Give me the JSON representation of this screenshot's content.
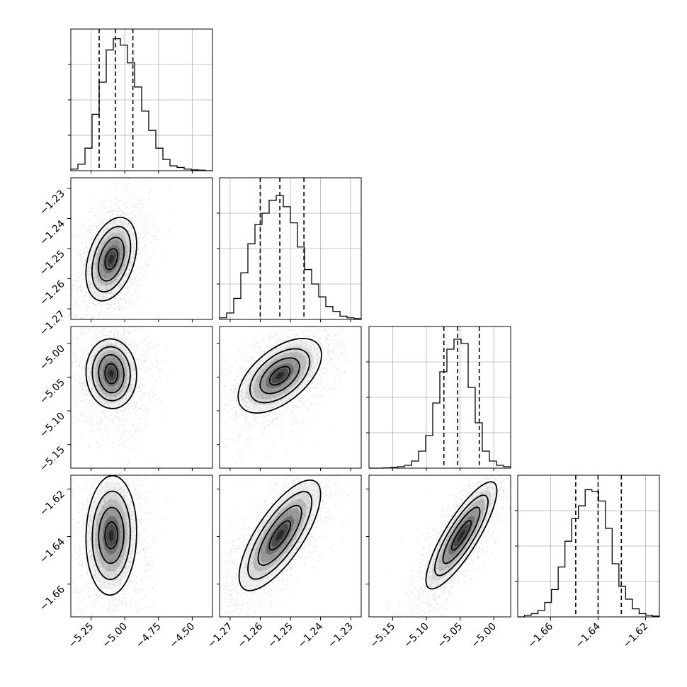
{
  "chart_data": {
    "type": "corner",
    "title": "",
    "grid": true,
    "params": [
      {
        "range": [
          -5.4,
          -4.35
        ],
        "ticks": [
          "−5.25",
          "−5.00",
          "−4.75",
          "−4.50"
        ],
        "tick_values": [
          -5.25,
          -5.0,
          -4.75,
          -4.5
        ],
        "quantiles": [
          -5.19,
          -5.07,
          -4.94
        ],
        "hist_ylim": [
          0,
          0.88
        ],
        "hist": [
          0.01,
          0.04,
          0.14,
          0.35,
          0.55,
          0.75,
          0.82,
          0.78,
          0.67,
          0.52,
          0.37,
          0.25,
          0.14,
          0.07,
          0.03,
          0.02,
          0.01,
          0.005,
          0.003,
          0
        ]
      },
      {
        "range": [
          -1.2735,
          -1.2265
        ],
        "ticks": [
          "−1.27",
          "−1.26",
          "−1.25",
          "−1.24",
          "−1.23"
        ],
        "tick_values": [
          -1.27,
          -1.26,
          -1.25,
          -1.24,
          -1.23
        ],
        "quantiles": [
          -1.26,
          -1.2535,
          -1.2455
        ],
        "hist_ylim": [
          0,
          0.88
        ],
        "hist": [
          0.01,
          0.04,
          0.13,
          0.29,
          0.47,
          0.59,
          0.66,
          0.74,
          0.77,
          0.7,
          0.6,
          0.45,
          0.31,
          0.22,
          0.14,
          0.08,
          0.05,
          0.02,
          0.01,
          0.005
        ]
      },
      {
        "range": [
          -5.185,
          -4.975
        ],
        "ticks": [
          "−5.15",
          "−5.10",
          "−5.05",
          "−5.00"
        ],
        "tick_values": [
          -5.15,
          -5.1,
          -5.05,
          -5.0
        ],
        "quantiles": [
          -5.074,
          -5.0535,
          -5.0215
        ],
        "hist_ylim": [
          0,
          1.0
        ],
        "hist": [
          0,
          0,
          0.002,
          0.005,
          0.01,
          0.02,
          0.05,
          0.12,
          0.23,
          0.46,
          0.68,
          0.84,
          0.91,
          0.88,
          0.57,
          0.32,
          0.12,
          0.05,
          0.02,
          0.01
        ]
      },
      {
        "range": [
          -1.6738,
          -1.6142
        ],
        "ticks": [
          "−1.66",
          "−1.64",
          "−1.62"
        ],
        "tick_values": [
          -1.66,
          -1.64,
          -1.62
        ],
        "quantiles": [
          -1.6494,
          -1.64,
          -1.6302
        ],
        "hist_ylim": [
          0,
          0.88
        ],
        "hist": [
          0,
          0.01,
          0.02,
          0.04,
          0.09,
          0.17,
          0.31,
          0.47,
          0.61,
          0.69,
          0.79,
          0.78,
          0.72,
          0.55,
          0.33,
          0.19,
          0.11,
          0.05,
          0.02,
          0.01,
          0.005
        ]
      }
    ],
    "pairs": [
      {
        "row": 1,
        "col": 0,
        "mean": [
          -5.1,
          -1.2535
        ],
        "sd": [
          0.075,
          0.0055
        ],
        "corr": 0.35
      },
      {
        "row": 2,
        "col": 0,
        "mean": [
          -5.1,
          -5.045
        ],
        "sd": [
          0.075,
          0.022
        ],
        "corr": -0.05
      },
      {
        "row": 2,
        "col": 1,
        "mean": [
          -1.2535,
          -5.048
        ],
        "sd": [
          0.0055,
          0.022
        ],
        "corr": 0.55
      },
      {
        "row": 3,
        "col": 0,
        "mean": [
          -5.1,
          -1.6395
        ],
        "sd": [
          0.075,
          0.0095
        ],
        "corr": 0.05
      },
      {
        "row": 3,
        "col": 1,
        "mean": [
          -1.2535,
          -1.6395
        ],
        "sd": [
          0.0055,
          0.0095
        ],
        "corr": 0.75
      },
      {
        "row": 3,
        "col": 2,
        "mean": [
          -5.048,
          -1.6395
        ],
        "sd": [
          0.022,
          0.0095
        ],
        "corr": 0.85
      }
    ],
    "contour_levels_sigma": [
      0.5,
      1.0,
      1.5,
      2.0
    ]
  }
}
